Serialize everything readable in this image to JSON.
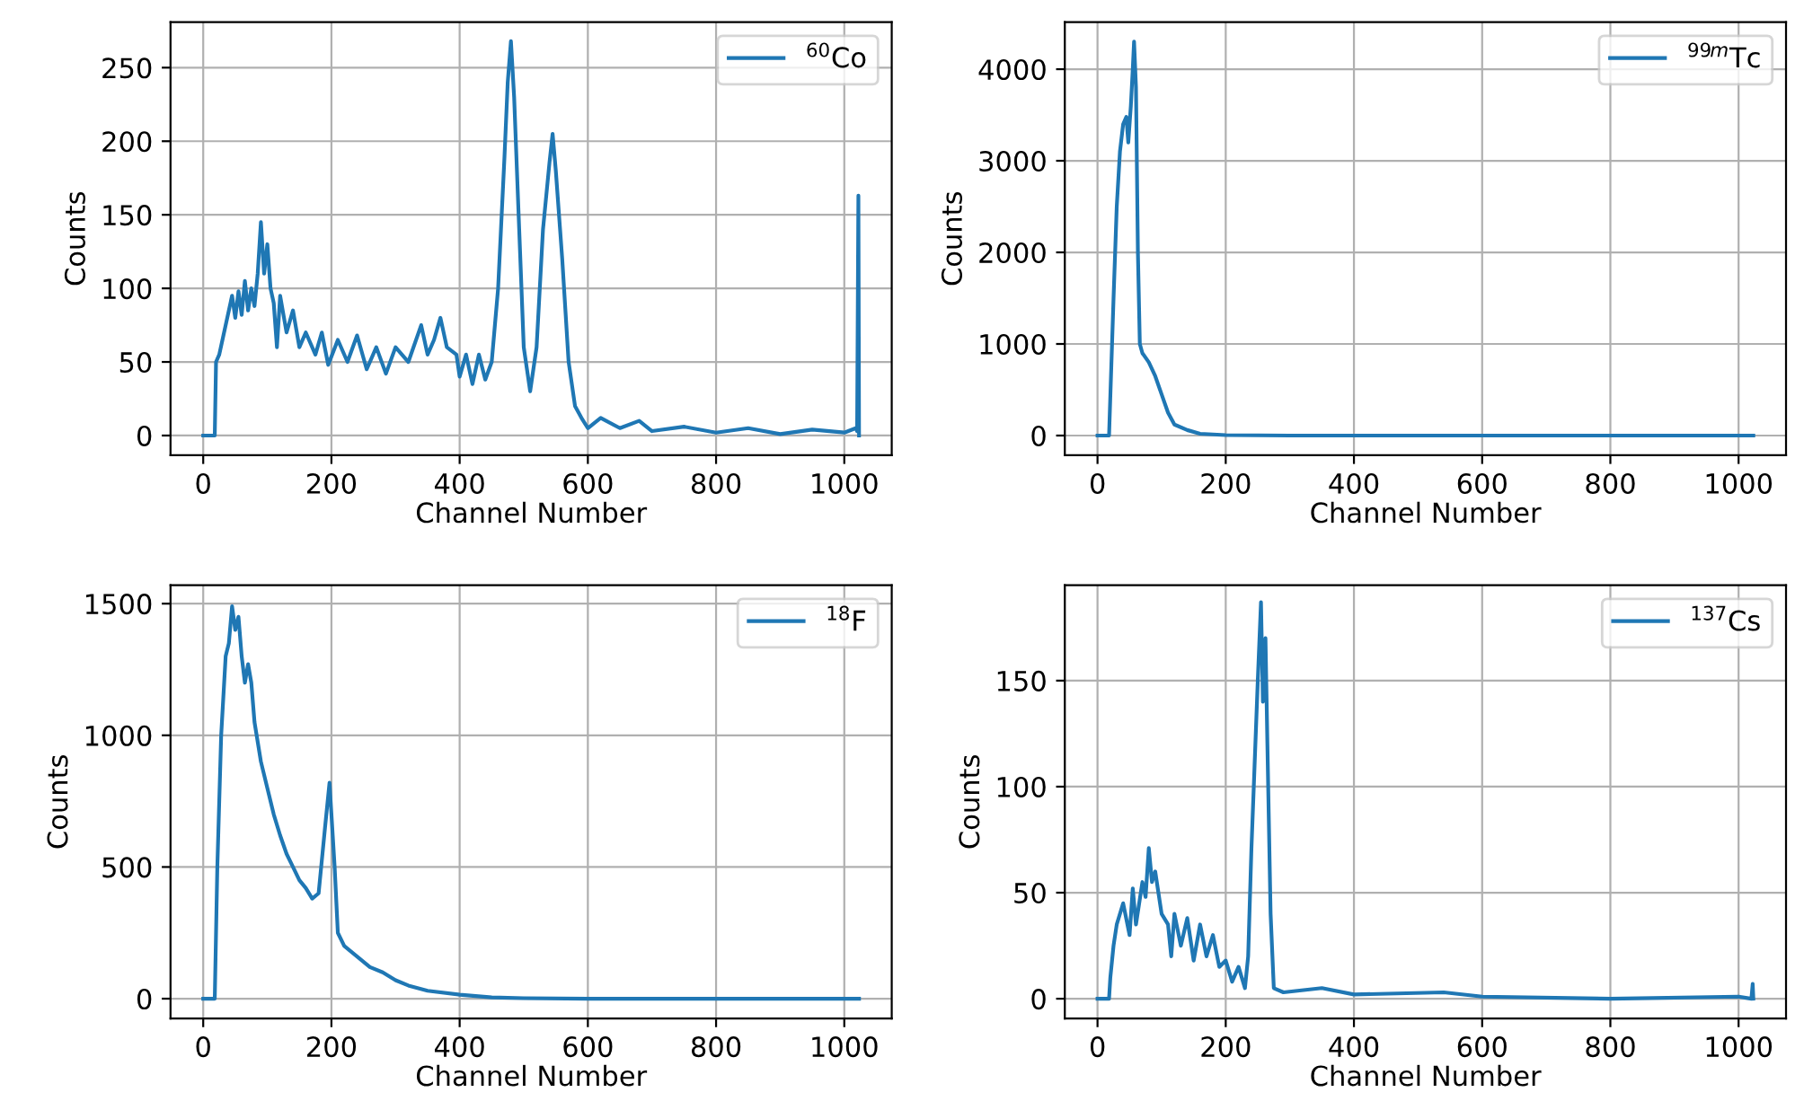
{
  "chart_data": [
    {
      "type": "line",
      "xlabel": "Channel Number",
      "ylabel": "Counts",
      "legend": "top right",
      "grid": true,
      "xlim": [
        -51,
        1074
      ],
      "xticks": [
        0,
        200,
        400,
        600,
        800,
        1000
      ],
      "ylim": [
        -13.4,
        281
      ],
      "yticks": [
        0,
        50,
        100,
        150,
        200,
        250
      ],
      "series": [
        {
          "name": "$^{60}$Co",
          "color": "#1f77b4",
          "x": [
            0,
            18,
            20,
            25,
            30,
            40,
            45,
            50,
            55,
            60,
            65,
            70,
            75,
            80,
            85,
            90,
            95,
            100,
            105,
            110,
            115,
            120,
            130,
            140,
            150,
            160,
            175,
            185,
            195,
            210,
            225,
            240,
            255,
            270,
            285,
            300,
            320,
            340,
            350,
            360,
            370,
            380,
            395,
            400,
            410,
            420,
            430,
            440,
            450,
            460,
            470,
            475,
            480,
            485,
            492,
            500,
            510,
            520,
            530,
            540,
            545,
            550,
            560,
            570,
            580,
            590,
            600,
            620,
            650,
            680,
            700,
            750,
            800,
            850,
            900,
            950,
            1000,
            1018,
            1020,
            1022,
            1023
          ],
          "values": [
            0,
            0,
            50,
            55,
            65,
            85,
            95,
            80,
            98,
            82,
            105,
            85,
            100,
            88,
            110,
            145,
            110,
            130,
            100,
            90,
            60,
            95,
            70,
            85,
            60,
            70,
            55,
            70,
            48,
            65,
            50,
            68,
            45,
            60,
            42,
            60,
            50,
            75,
            55,
            65,
            80,
            60,
            55,
            40,
            55,
            35,
            55,
            38,
            50,
            100,
            190,
            240,
            268,
            230,
            150,
            60,
            30,
            60,
            140,
            185,
            205,
            180,
            120,
            50,
            20,
            12,
            5,
            12,
            5,
            10,
            3,
            6,
            2,
            5,
            1,
            4,
            2,
            5,
            3,
            163,
            0
          ]
        }
      ]
    },
    {
      "type": "line",
      "xlabel": "Channel Number",
      "ylabel": "Counts",
      "legend": "top right",
      "grid": true,
      "xlim": [
        -51,
        1074
      ],
      "xticks": [
        0,
        200,
        400,
        600,
        800,
        1000
      ],
      "ylim": [
        -215,
        4515
      ],
      "yticks": [
        0,
        1000,
        2000,
        3000,
        4000
      ],
      "series": [
        {
          "name": "$^{99m}$Tc",
          "color": "#1f77b4",
          "x": [
            0,
            18,
            25,
            30,
            35,
            40,
            45,
            48,
            52,
            55,
            57,
            60,
            63,
            66,
            70,
            80,
            90,
            100,
            110,
            120,
            140,
            160,
            200,
            300,
            600,
            1023
          ],
          "values": [
            0,
            0,
            1500,
            2500,
            3100,
            3400,
            3480,
            3200,
            3600,
            4000,
            4300,
            3800,
            2000,
            1000,
            900,
            800,
            650,
            450,
            250,
            120,
            60,
            20,
            5,
            0,
            0,
            0
          ]
        }
      ]
    },
    {
      "type": "line",
      "xlabel": "Channel Number",
      "ylabel": "Counts",
      "legend": "top right",
      "grid": true,
      "xlim": [
        -51,
        1074
      ],
      "xticks": [
        0,
        200,
        400,
        600,
        800,
        1000
      ],
      "ylim": [
        -75,
        1570
      ],
      "yticks": [
        0,
        500,
        1000,
        1500
      ],
      "series": [
        {
          "name": "$^{18}$F",
          "color": "#1f77b4",
          "x": [
            0,
            18,
            22,
            28,
            35,
            40,
            45,
            50,
            55,
            60,
            65,
            70,
            75,
            80,
            90,
            100,
            110,
            120,
            130,
            140,
            150,
            160,
            170,
            180,
            190,
            197,
            205,
            210,
            220,
            240,
            260,
            280,
            300,
            320,
            350,
            400,
            450,
            500,
            600,
            1023
          ],
          "values": [
            0,
            0,
            500,
            1000,
            1300,
            1350,
            1490,
            1400,
            1450,
            1300,
            1200,
            1270,
            1200,
            1050,
            900,
            800,
            700,
            620,
            550,
            500,
            450,
            420,
            380,
            400,
            650,
            820,
            500,
            250,
            200,
            160,
            120,
            100,
            70,
            50,
            30,
            15,
            5,
            2,
            0,
            0
          ]
        }
      ]
    },
    {
      "type": "line",
      "xlabel": "Channel Number",
      "ylabel": "Counts",
      "legend": "top right",
      "grid": true,
      "xlim": [
        -51,
        1074
      ],
      "xticks": [
        0,
        200,
        400,
        600,
        800,
        1000
      ],
      "ylim": [
        -9.3,
        195
      ],
      "yticks": [
        0,
        50,
        100,
        150
      ],
      "series": [
        {
          "name": "$^{137}$Cs",
          "color": "#1f77b4",
          "x": [
            0,
            18,
            20,
            25,
            30,
            40,
            50,
            55,
            60,
            70,
            75,
            80,
            85,
            90,
            100,
            110,
            115,
            120,
            130,
            140,
            150,
            160,
            170,
            180,
            190,
            200,
            210,
            220,
            230,
            235,
            240,
            245,
            250,
            255,
            258,
            262,
            265,
            270,
            275,
            290,
            350,
            400,
            540,
            600,
            800,
            1000,
            1020,
            1022,
            1023
          ],
          "values": [
            0,
            0,
            10,
            25,
            35,
            45,
            30,
            52,
            35,
            55,
            48,
            71,
            55,
            60,
            40,
            35,
            20,
            40,
            25,
            38,
            18,
            35,
            20,
            30,
            15,
            18,
            8,
            15,
            5,
            20,
            70,
            110,
            150,
            187,
            140,
            170,
            120,
            40,
            5,
            3,
            5,
            2,
            3,
            1,
            0,
            1,
            0,
            7,
            0
          ]
        }
      ]
    }
  ]
}
